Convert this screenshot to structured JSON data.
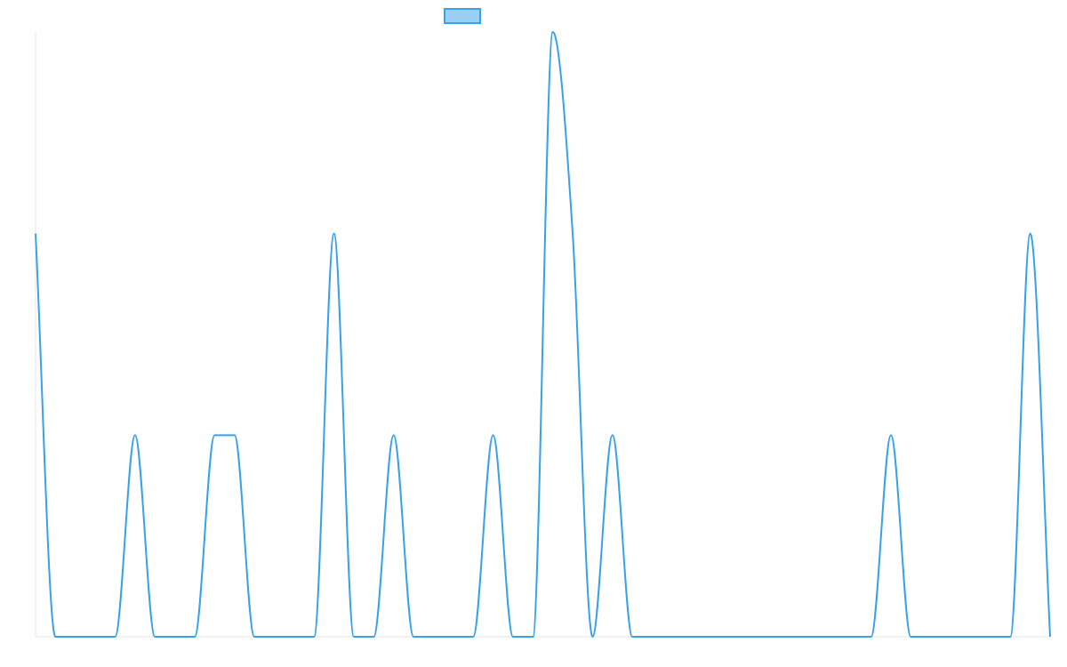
{
  "chart_data": {
    "type": "line",
    "x": [
      0,
      1,
      2,
      3,
      4,
      5,
      6,
      7,
      8,
      9,
      10,
      11,
      12,
      13,
      14,
      15,
      16,
      17,
      18,
      19,
      20,
      21,
      22,
      23,
      24,
      25,
      26,
      27,
      28,
      29,
      30,
      31,
      32,
      33,
      34,
      35,
      36,
      37,
      38,
      39,
      40,
      41,
      42,
      43,
      44,
      45,
      46,
      47,
      48,
      49,
      50,
      51
    ],
    "series": [
      {
        "values": [
          2,
          0,
          0,
          0,
          0,
          1,
          0,
          0,
          0,
          1,
          1,
          0,
          0,
          0,
          0,
          2,
          0,
          0,
          1,
          0,
          0,
          0,
          0,
          1,
          0,
          0,
          3,
          2,
          0,
          1,
          0,
          0,
          0,
          0,
          0,
          0,
          0,
          0,
          0,
          0,
          0,
          0,
          0,
          1,
          0,
          0,
          0,
          0,
          0,
          0,
          2,
          0
        ],
        "color": "#36a2eb"
      }
    ],
    "legend": {
      "position": "top",
      "swatch_fill": "#9ad0f5",
      "swatch_stroke": "#36a2eb"
    },
    "ylim": [
      0,
      3
    ],
    "grid": false
  }
}
